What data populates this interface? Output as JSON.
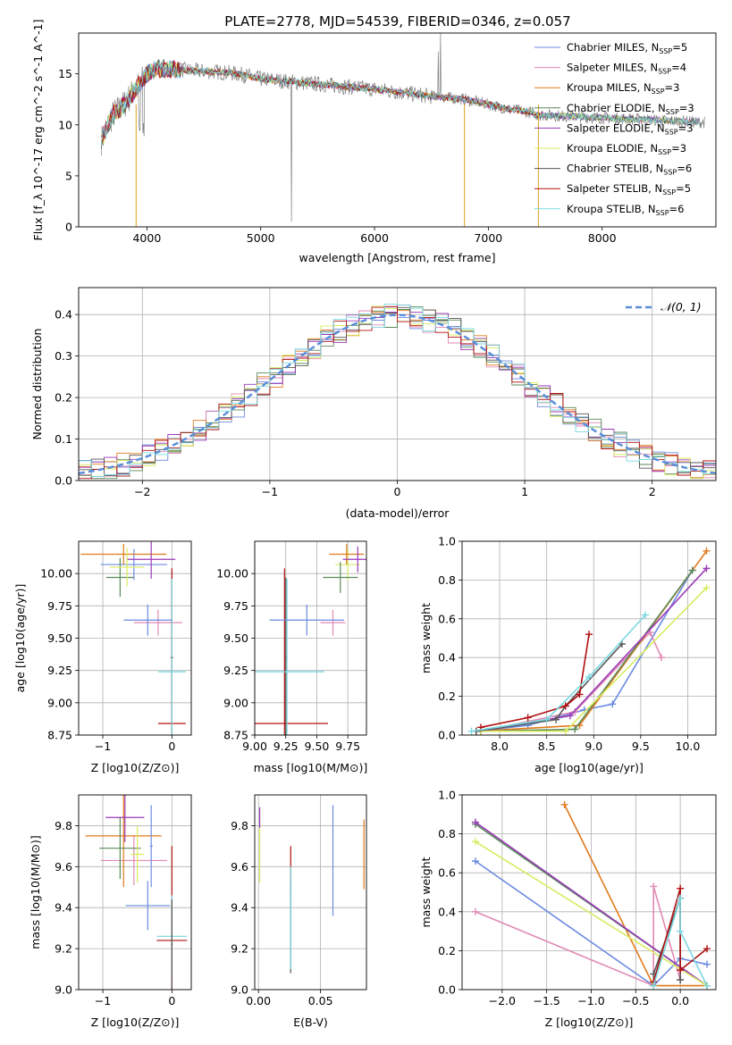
{
  "figure": {
    "title": "PLATE=2778, MJD=54539, FIBERID=0346, z=0.057"
  },
  "legend": {
    "entries": [
      {
        "label": "Chabrier MILES, N",
        "sub": "SSP",
        "suffix": "=5",
        "color": "#6c8ae0"
      },
      {
        "label": "Salpeter MILES, N",
        "sub": "SSP",
        "suffix": "=4",
        "color": "#e08ab4"
      },
      {
        "label": "Kroupa MILES, N",
        "sub": "SSP",
        "suffix": "=3",
        "color": "#e07a1c"
      },
      {
        "label": "Chabrier ELODIE, N",
        "sub": "SSP",
        "suffix": "=3",
        "color": "#5a8a5a"
      },
      {
        "label": "Salpeter ELODIE, N",
        "sub": "SSP",
        "suffix": "=3",
        "color": "#9a3ab8"
      },
      {
        "label": "Kroupa ELODIE, N",
        "sub": "SSP",
        "suffix": "=3",
        "color": "#d8ec60"
      },
      {
        "label": "Chabrier STELIB, N",
        "sub": "SSP",
        "suffix": "=6",
        "color": "#555555"
      },
      {
        "label": "Salpeter STELIB, N",
        "sub": "SSP",
        "suffix": "=5",
        "color": "#b01010"
      },
      {
        "label": "Kroupa STELIB, N",
        "sub": "SSP",
        "suffix": "=6",
        "color": "#7ad8e0"
      }
    ],
    "normal": "𝒩(0, 1)"
  },
  "chart_data": [
    {
      "id": "spectrum",
      "type": "line",
      "xlabel": "wavelength [Angstrom, rest frame]",
      "ylabel": "Flux [f_λ 10^-17 erg cm^-2 s^-1 A^-1]",
      "xlim": [
        3400,
        9000
      ],
      "ylim": [
        0,
        19
      ],
      "xticks": [
        4000,
        5000,
        6000,
        7000,
        8000
      ],
      "yticks": [
        0,
        5,
        10,
        15
      ],
      "grid": false,
      "legend_position": "top-right",
      "approx_continuum": {
        "x": [
          3600,
          3700,
          3800,
          3900,
          4000,
          4100,
          4200,
          4400,
          4600,
          4800,
          5000,
          5500,
          6000,
          6500,
          6800,
          7000,
          7200,
          7400
        ],
        "y": [
          8.5,
          11,
          12,
          13.5,
          15,
          15.5,
          15.5,
          15.3,
          15.2,
          15,
          14.5,
          14,
          13.5,
          12.8,
          12.5,
          12,
          11.5,
          11.2
        ]
      }
    },
    {
      "id": "residuals",
      "type": "histogram",
      "xlabel": "(data-model)/error",
      "ylabel": "Normed distribution",
      "xlim": [
        -2.5,
        2.5
      ],
      "ylim": [
        0,
        0.465
      ],
      "xticks": [
        -2,
        -1,
        0,
        1,
        2
      ],
      "yticks": [
        0.0,
        0.1,
        0.2,
        0.3,
        0.4
      ],
      "grid": true,
      "normal_curve": {
        "mean": 0,
        "sigma": 1,
        "style": "dashed"
      },
      "legend_position": "top-right"
    },
    {
      "id": "age-vs-Z",
      "type": "errorbar",
      "xlabel": "Z [log10(Z/Z⊙)]",
      "ylabel": "age  [log10(age/yr)]",
      "xlim": [
        -1.35,
        0.28
      ],
      "ylim": [
        8.75,
        10.25
      ],
      "xticks": [
        -1,
        0
      ],
      "yticks": [
        8.75,
        9.0,
        9.25,
        9.5,
        9.75,
        10.0
      ],
      "grid": true,
      "points": [
        {
          "x": -0.55,
          "xerr": 0.48,
          "y": 10.07,
          "yerr": 0.12,
          "series": 0
        },
        {
          "x": -0.2,
          "xerr": 0.35,
          "y": 9.62,
          "yerr": 0.1,
          "series": 1
        },
        {
          "x": -0.7,
          "xerr": 0.62,
          "y": 10.15,
          "yerr": 0.08,
          "series": 2
        },
        {
          "x": -0.75,
          "xerr": 0.2,
          "y": 9.97,
          "yerr": 0.15,
          "series": 3
        },
        {
          "x": -0.3,
          "xerr": 0.35,
          "y": 10.11,
          "yerr": 0.15,
          "series": 4
        },
        {
          "x": -0.65,
          "xerr": 0.25,
          "y": 10.05,
          "yerr": 0.15,
          "series": 5
        },
        {
          "x": 0.0,
          "xerr": 0.02,
          "y": 9.35,
          "yerr": 0.62,
          "series": 6
        },
        {
          "x": 0.0,
          "xerr": 0.2,
          "y": 8.84,
          "yerr": 1.2,
          "series": 7
        },
        {
          "x": 0.0,
          "xerr": 0.2,
          "y": 9.24,
          "yerr": 0.72,
          "series": 8
        },
        {
          "x": -0.35,
          "xerr": 0.35,
          "y": 9.64,
          "yerr": 0.12,
          "series": 0
        }
      ]
    },
    {
      "id": "age-vs-mass",
      "type": "errorbar",
      "xlabel": "mass [log10(M/M⊙)]",
      "ylabel": "",
      "xlim": [
        9.0,
        9.9
      ],
      "ylim": [
        8.75,
        10.25
      ],
      "xticks": [
        9.0,
        9.25,
        9.5,
        9.75
      ],
      "yticks": [
        8.75,
        9.0,
        9.25,
        9.5,
        9.75,
        10.0
      ],
      "grid": true,
      "points": [
        {
          "x": 9.75,
          "xerr": 0.1,
          "y": 10.07,
          "yerr": 0.12,
          "series": 5
        },
        {
          "x": 9.63,
          "xerr": 0.1,
          "y": 9.62,
          "yerr": 0.1,
          "series": 1
        },
        {
          "x": 9.74,
          "xerr": 0.14,
          "y": 10.15,
          "yerr": 0.08,
          "series": 2
        },
        {
          "x": 9.69,
          "xerr": 0.14,
          "y": 9.97,
          "yerr": 0.12,
          "series": 3
        },
        {
          "x": 9.83,
          "xerr": 0.12,
          "y": 10.11,
          "yerr": 0.1,
          "series": 4
        },
        {
          "x": 9.25,
          "xerr": 0.01,
          "y": 9.35,
          "yerr": 0.62,
          "series": 6
        },
        {
          "x": 9.24,
          "xerr": 0.35,
          "y": 8.84,
          "yerr": 1.2,
          "series": 7
        },
        {
          "x": 9.26,
          "xerr": 0.3,
          "y": 9.24,
          "yerr": 0.72,
          "series": 8
        },
        {
          "x": 9.42,
          "xerr": 0.3,
          "y": 9.64,
          "yerr": 0.12,
          "series": 0
        }
      ]
    },
    {
      "id": "massweight-vs-age",
      "type": "line",
      "xlabel": "age  [log10(age/yr)]",
      "ylabel": "mass weight",
      "xlim": [
        7.6,
        10.3
      ],
      "ylim": [
        0.0,
        1.0
      ],
      "xticks": [
        8.0,
        8.5,
        9.0,
        9.5,
        10.0
      ],
      "yticks": [
        0.0,
        0.2,
        0.4,
        0.6,
        0.8,
        1.0
      ],
      "grid": true,
      "series": [
        {
          "name": "Chabrier MILES",
          "color": "#6c8ae0",
          "x": [
            7.75,
            8.3,
            8.9,
            9.2,
            10.05
          ],
          "y": [
            0.02,
            0.05,
            0.13,
            0.16,
            0.85
          ]
        },
        {
          "name": "Salpeter MILES",
          "color": "#e08ab4",
          "x": [
            7.8,
            8.8,
            9.6,
            9.72
          ],
          "y": [
            0.02,
            0.12,
            0.53,
            0.4
          ]
        },
        {
          "name": "Kroupa MILES",
          "color": "#e07a1c",
          "x": [
            7.75,
            8.85,
            10.2
          ],
          "y": [
            0.02,
            0.05,
            0.95
          ]
        },
        {
          "name": "Chabrier ELODIE",
          "color": "#5a8a5a",
          "x": [
            7.8,
            8.8,
            10.05
          ],
          "y": [
            0.02,
            0.03,
            0.85
          ]
        },
        {
          "name": "Salpeter ELODIE",
          "color": "#9a3ab8",
          "x": [
            7.8,
            8.75,
            10.2
          ],
          "y": [
            0.02,
            0.1,
            0.86
          ]
        },
        {
          "name": "Kroupa ELODIE",
          "color": "#d8ec60",
          "x": [
            7.8,
            8.7,
            10.2
          ],
          "y": [
            0.02,
            0.02,
            0.76
          ]
        },
        {
          "name": "Chabrier STELIB",
          "color": "#555555",
          "x": [
            7.75,
            8.6,
            8.7,
            9.3
          ],
          "y": [
            0.02,
            0.08,
            0.15,
            0.47
          ]
        },
        {
          "name": "Salpeter STELIB",
          "color": "#b01010",
          "x": [
            7.8,
            8.3,
            8.7,
            8.85,
            8.95
          ],
          "y": [
            0.04,
            0.09,
            0.15,
            0.21,
            0.52
          ]
        },
        {
          "name": "Kroupa STELIB",
          "color": "#7ad8e0",
          "x": [
            7.7,
            8.5,
            8.95,
            9.55
          ],
          "y": [
            0.02,
            0.08,
            0.3,
            0.62
          ]
        }
      ]
    },
    {
      "id": "mass-vs-Z",
      "type": "errorbar",
      "xlabel": "Z [log10(Z/Z⊙)]",
      "ylabel": "mass [log10(M/M⊙)]",
      "xlim": [
        -1.35,
        0.28
      ],
      "ylim": [
        9.0,
        9.95
      ],
      "xticks": [
        -1,
        0
      ],
      "yticks": [
        9.0,
        9.2,
        9.4,
        9.6,
        9.8
      ],
      "grid": true,
      "points": [
        {
          "x": -0.55,
          "xerr": 0.48,
          "y": 9.63,
          "yerr": 0.12,
          "series": 1
        },
        {
          "x": -0.7,
          "xerr": 0.55,
          "y": 9.75,
          "yerr": 0.25,
          "series": 2
        },
        {
          "x": -0.75,
          "xerr": 0.3,
          "y": 9.69,
          "yerr": 0.15,
          "series": 3
        },
        {
          "x": -0.68,
          "xerr": 0.28,
          "y": 9.84,
          "yerr": 0.12,
          "series": 4
        },
        {
          "x": -0.5,
          "xerr": 0.1,
          "y": 9.66,
          "yerr": 0.14,
          "series": 5
        },
        {
          "x": -0.35,
          "xerr": 0.32,
          "y": 9.41,
          "yerr": 0.12,
          "series": 0
        },
        {
          "x": -0.3,
          "xerr": 0.02,
          "y": 9.7,
          "yerr": 0.2,
          "series": 0
        },
        {
          "x": 0.0,
          "xerr": 0.22,
          "y": 9.24,
          "yerr": 0.46,
          "series": 7
        },
        {
          "x": 0.0,
          "xerr": 0.22,
          "y": 9.26,
          "yerr": 0.2,
          "series": 8
        },
        {
          "x": 0.0,
          "xerr": 0.01,
          "y": 9.22,
          "yerr": 0.22,
          "series": 6
        }
      ]
    },
    {
      "id": "mass-vs-EBV",
      "type": "errorbar",
      "xlabel": "E(B-V)",
      "ylabel": "",
      "xlim": [
        -0.003,
        0.087
      ],
      "ylim": [
        9.0,
        9.95
      ],
      "xticks": [
        0.0,
        0.05
      ],
      "yticks": [
        9.0,
        9.2,
        9.4,
        9.6,
        9.8
      ],
      "grid": true,
      "points": [
        {
          "x": 0.001,
          "xerr": 0,
          "y": 9.7,
          "yerr": 0.18,
          "series": 5
        },
        {
          "x": 0.001,
          "xerr": 0,
          "y": 9.84,
          "yerr": 0.05,
          "series": 4
        },
        {
          "x": 0.026,
          "xerr": 0,
          "y": 9.57,
          "yerr": 0.13,
          "series": 7
        },
        {
          "x": 0.026,
          "xerr": 0,
          "y": 9.3,
          "yerr": 0.22,
          "series": 6
        },
        {
          "x": 0.026,
          "xerr": 0,
          "y": 9.35,
          "yerr": 0.25,
          "series": 8
        },
        {
          "x": 0.06,
          "xerr": 0,
          "y": 9.63,
          "yerr": 0.27,
          "series": 0
        },
        {
          "x": 0.085,
          "xerr": 0,
          "y": 9.66,
          "yerr": 0.17,
          "series": 2
        }
      ]
    },
    {
      "id": "massweight-vs-Z",
      "type": "line",
      "xlabel": "Z [log10(Z/Z⊙)]",
      "ylabel": "mass weight",
      "xlim": [
        -2.45,
        0.4
      ],
      "ylim": [
        0.0,
        1.0
      ],
      "xticks": [
        -2.0,
        -1.5,
        -1.0,
        -0.5,
        0.0
      ],
      "yticks": [
        0.0,
        0.2,
        0.4,
        0.6,
        0.8,
        1.0
      ],
      "grid": true,
      "series": [
        {
          "name": "Chabrier MILES",
          "color": "#6c8ae0",
          "x": [
            -2.3,
            -0.3,
            0.0,
            0.3
          ],
          "y": [
            0.66,
            0.02,
            0.16,
            0.13
          ]
        },
        {
          "name": "Salpeter MILES",
          "color": "#e08ab4",
          "x": [
            -2.3,
            -0.3,
            -0.3,
            0.0
          ],
          "y": [
            0.4,
            0.02,
            0.53,
            0.05
          ]
        },
        {
          "name": "Kroupa MILES",
          "color": "#e07a1c",
          "x": [
            -1.3,
            -0.3,
            0.3
          ],
          "y": [
            0.95,
            0.02,
            0.02
          ]
        },
        {
          "name": "Chabrier ELODIE",
          "color": "#5a8a5a",
          "x": [
            -2.3,
            0.3
          ],
          "y": [
            0.85,
            0.02
          ]
        },
        {
          "name": "Salpeter ELODIE",
          "color": "#9a3ab8",
          "x": [
            -2.3,
            0.3
          ],
          "y": [
            0.86,
            0.02
          ]
        },
        {
          "name": "Kroupa ELODIE",
          "color": "#d8ec60",
          "x": [
            -2.3,
            0.3
          ],
          "y": [
            0.76,
            0.02
          ]
        },
        {
          "name": "Chabrier STELIB",
          "color": "#555555",
          "x": [
            -0.3,
            0.0,
            0.0
          ],
          "y": [
            0.08,
            0.47,
            0.05
          ]
        },
        {
          "name": "Salpeter STELIB",
          "color": "#b01010",
          "x": [
            -0.3,
            0.0,
            0.0,
            0.3
          ],
          "y": [
            0.04,
            0.52,
            0.1,
            0.21
          ]
        },
        {
          "name": "Kroupa STELIB",
          "color": "#7ad8e0",
          "x": [
            -0.3,
            0.0,
            0.0,
            0.3
          ],
          "y": [
            0.02,
            0.47,
            0.3,
            0.02
          ]
        }
      ]
    }
  ]
}
